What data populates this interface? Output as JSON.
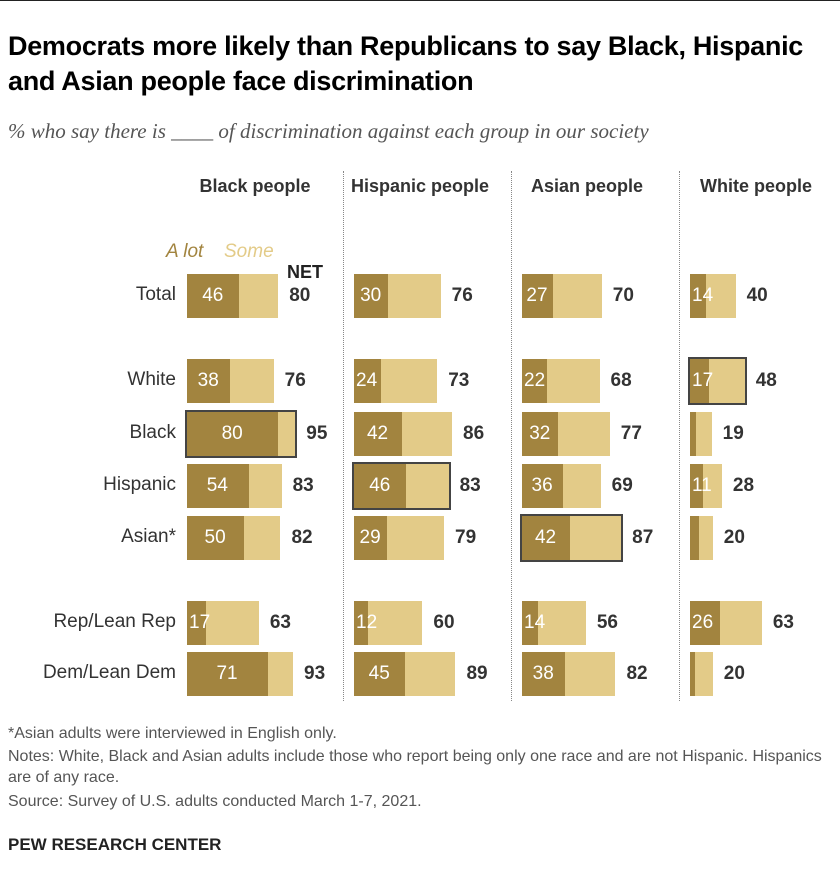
{
  "title": "Democrats more likely than Republicans to say Black, Hispanic and Asian people face discrimination",
  "subtitle": "% who say there is ____ of discrimination against each group in our society",
  "legend": {
    "alot": "A lot",
    "some": "Some",
    "net": "NET"
  },
  "colors": {
    "alot": "#a2843f",
    "some": "#e3cb88"
  },
  "chart_data": {
    "type": "bar",
    "stacked": true,
    "columns": [
      "Black people",
      "Hispanic people",
      "Asian people",
      "White people"
    ],
    "rows": [
      "Total",
      "White",
      "Black",
      "Hispanic",
      "Asian*",
      "Rep/Lean Rep",
      "Dem/Lean Dem"
    ],
    "alot": [
      [
        46,
        38,
        80,
        54,
        50,
        17,
        71
      ],
      [
        30,
        24,
        42,
        46,
        29,
        12,
        45
      ],
      [
        27,
        22,
        32,
        36,
        42,
        14,
        38
      ],
      [
        14,
        17,
        5,
        11,
        8,
        26,
        4
      ]
    ],
    "net": [
      [
        80,
        76,
        95,
        83,
        82,
        63,
        93
      ],
      [
        76,
        73,
        86,
        83,
        79,
        60,
        89
      ],
      [
        70,
        68,
        77,
        69,
        87,
        56,
        82
      ],
      [
        40,
        48,
        19,
        28,
        20,
        63,
        20
      ]
    ],
    "highlighted": [
      [
        0,
        2
      ],
      [
        1,
        3
      ],
      [
        2,
        4
      ],
      [
        3,
        1
      ]
    ]
  },
  "footnotes": {
    "asian": "*Asian adults were interviewed in English only.",
    "notes": "Notes: White, Black and Asian adults include those who report being only one race and are not Hispanic. Hispanics are of any race.",
    "source": "Source: Survey of U.S. adults conducted March 1-7, 2021."
  },
  "brand": "PEW RESEARCH CENTER"
}
